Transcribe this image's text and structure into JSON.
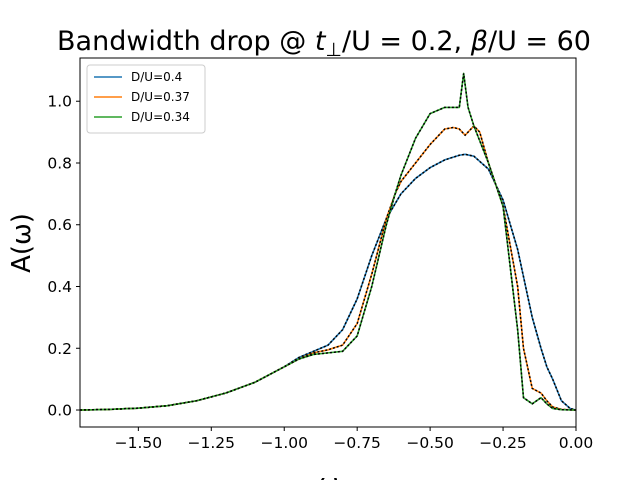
{
  "chart_data": {
    "type": "line",
    "title": "Bandwidth drop @ t⊥/U = 0.2, β/U = 60",
    "title_parts": {
      "prefix": "Bandwidth drop @ ",
      "t_sym": "t",
      "t_sub": "⊥",
      "t_rest": "/U = 0.2, ",
      "beta_sym": "β",
      "beta_rest": "/U = 60"
    },
    "xlabel": "ω",
    "ylabel": "A(ω)",
    "xlim": [
      -1.7,
      0.0
    ],
    "ylim": [
      -0.055,
      1.14
    ],
    "x_ticks": [
      -1.5,
      -1.25,
      -1.0,
      -0.75,
      -0.5,
      -0.25,
      0.0
    ],
    "x_tick_labels": [
      "−1.50",
      "−1.25",
      "−1.00",
      "−0.75",
      "−0.50",
      "−0.25",
      "0.00"
    ],
    "y_ticks": [
      0.0,
      0.2,
      0.4,
      0.6,
      0.8,
      1.0
    ],
    "y_tick_labels": [
      "0.0",
      "0.2",
      "0.4",
      "0.6",
      "0.8",
      "1.0"
    ],
    "grid": false,
    "legend_position": "top-left",
    "overlay_line_color": "#000000",
    "series": [
      {
        "name": "D/U=0.4",
        "color": "#1f77b4",
        "x": [
          -1.7,
          -1.6,
          -1.5,
          -1.4,
          -1.3,
          -1.2,
          -1.1,
          -1.0,
          -0.95,
          -0.9,
          -0.85,
          -0.8,
          -0.75,
          -0.7,
          -0.65,
          -0.6,
          -0.55,
          -0.5,
          -0.45,
          -0.4,
          -0.38,
          -0.35,
          -0.3,
          -0.25,
          -0.2,
          -0.15,
          -0.12,
          -0.1,
          -0.08,
          -0.05,
          -0.02,
          0.0
        ],
        "y": [
          0.0,
          0.002,
          0.006,
          0.014,
          0.03,
          0.055,
          0.09,
          0.14,
          0.17,
          0.19,
          0.21,
          0.26,
          0.36,
          0.5,
          0.62,
          0.7,
          0.75,
          0.785,
          0.81,
          0.825,
          0.828,
          0.822,
          0.78,
          0.68,
          0.52,
          0.3,
          0.2,
          0.14,
          0.1,
          0.03,
          0.005,
          0.0
        ]
      },
      {
        "name": "D/U=0.37",
        "color": "#ff7f0e",
        "x": [
          -1.7,
          -1.6,
          -1.5,
          -1.4,
          -1.3,
          -1.2,
          -1.1,
          -1.0,
          -0.95,
          -0.9,
          -0.85,
          -0.8,
          -0.75,
          -0.7,
          -0.65,
          -0.62,
          -0.6,
          -0.55,
          -0.5,
          -0.45,
          -0.42,
          -0.4,
          -0.38,
          -0.35,
          -0.33,
          -0.3,
          -0.25,
          -0.2,
          -0.18,
          -0.15,
          -0.12,
          -0.1,
          -0.08,
          -0.05,
          0.0
        ],
        "y": [
          0.0,
          0.002,
          0.006,
          0.014,
          0.03,
          0.055,
          0.09,
          0.14,
          0.165,
          0.185,
          0.195,
          0.21,
          0.28,
          0.44,
          0.62,
          0.7,
          0.74,
          0.8,
          0.86,
          0.91,
          0.915,
          0.91,
          0.89,
          0.92,
          0.9,
          0.8,
          0.66,
          0.4,
          0.2,
          0.07,
          0.055,
          0.03,
          0.01,
          0.002,
          0.0
        ]
      },
      {
        "name": "D/U=0.34",
        "color": "#2ca02c",
        "x": [
          -1.7,
          -1.6,
          -1.5,
          -1.4,
          -1.3,
          -1.2,
          -1.1,
          -1.0,
          -0.95,
          -0.9,
          -0.85,
          -0.8,
          -0.75,
          -0.7,
          -0.65,
          -0.62,
          -0.6,
          -0.55,
          -0.5,
          -0.45,
          -0.42,
          -0.4,
          -0.385,
          -0.37,
          -0.35,
          -0.3,
          -0.25,
          -0.2,
          -0.18,
          -0.15,
          -0.12,
          -0.1,
          -0.08,
          -0.05,
          0.0
        ],
        "y": [
          0.0,
          0.002,
          0.006,
          0.014,
          0.03,
          0.055,
          0.09,
          0.14,
          0.165,
          0.18,
          0.185,
          0.19,
          0.24,
          0.4,
          0.6,
          0.7,
          0.76,
          0.88,
          0.96,
          0.98,
          0.98,
          0.98,
          1.09,
          0.98,
          0.92,
          0.8,
          0.66,
          0.26,
          0.04,
          0.02,
          0.04,
          0.02,
          0.005,
          0.001,
          0.0
        ]
      }
    ]
  }
}
